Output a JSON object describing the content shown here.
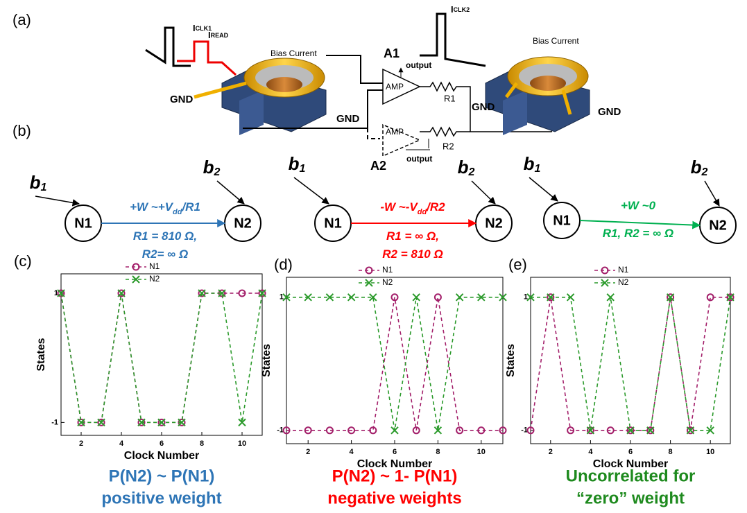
{
  "panel_labels": {
    "a": "(a)",
    "b": "(b)"
  },
  "device": {
    "i_clk1": [
      "I",
      "CLK1"
    ],
    "i_read": [
      "I",
      "READ"
    ],
    "bias_current_1": "Bias Current",
    "gnd_1": "GND",
    "gnd_2": "GND",
    "a1": "A1",
    "output_1": "output",
    "amp_1": "AMP",
    "r1": "R1",
    "amp_2": "AMP",
    "r2": "R2",
    "output_2": "output",
    "a2": "A2",
    "i_clk2": [
      "I",
      "CLK2"
    ],
    "bias_current_2": "Bias Current",
    "gnd_3": "GND",
    "gnd_4": "GND"
  },
  "networks": [
    {
      "source": [
        "b",
        "1"
      ],
      "target": [
        "b",
        "2"
      ],
      "from": "N1",
      "to": "N2",
      "color": "#2e75b6",
      "edge_label": [
        [
          "+W ~+V",
          "dd",
          "/R1"
        ],
        [
          "R1 = 810 Ω,"
        ],
        [
          "R2= ∞ Ω"
        ]
      ]
    },
    {
      "source": [
        "b",
        "1"
      ],
      "target": [
        "b",
        "2"
      ],
      "from": "N1",
      "to": "N2",
      "color": "#ff0000",
      "edge_label": [
        [
          "-W ~-V",
          "dd",
          "/R2"
        ],
        [
          "R1 = ∞ Ω,"
        ],
        [
          "R2 = 810 Ω"
        ]
      ]
    },
    {
      "source": [
        "b",
        "1"
      ],
      "target": [
        "b",
        "2"
      ],
      "from": "N1",
      "to": "N2",
      "color": "#00b050",
      "edge_label": [
        [
          "+W ~0"
        ],
        [
          "R1, R2 = ∞ Ω"
        ]
      ]
    }
  ],
  "chart_data": [
    {
      "type": "line",
      "title": "(c)",
      "x_label": "Clock Number",
      "y_label": "States",
      "x": [
        1,
        2,
        3,
        4,
        5,
        6,
        7,
        8,
        9,
        10,
        11
      ],
      "xlim": [
        1,
        11
      ],
      "ylim": [
        -1.2,
        1.3
      ],
      "xticks": [
        2,
        4,
        6,
        8,
        10
      ],
      "yticks": [
        -1,
        1
      ],
      "series": [
        {
          "name": "N1",
          "color": "#a31f6a",
          "marker": "circle",
          "values": [
            1,
            -1,
            -1,
            1,
            -1,
            -1,
            -1,
            1,
            1,
            1,
            1
          ]
        },
        {
          "name": "N2",
          "color": "#2b9a2b",
          "marker": "x",
          "values": [
            1,
            -1,
            -1,
            1,
            -1,
            -1,
            -1,
            1,
            1,
            -1,
            1
          ]
        }
      ],
      "caption": [
        "P(N2) ~ P(N1)",
        "positive weight"
      ],
      "caption_color": "#2e75b6"
    },
    {
      "type": "line",
      "title": "(d)",
      "x_label": "Clock Number",
      "y_label": "States",
      "x": [
        1,
        2,
        3,
        4,
        5,
        6,
        7,
        8,
        9,
        10,
        11
      ],
      "xlim": [
        1,
        11
      ],
      "ylim": [
        -1.2,
        1.3
      ],
      "xticks": [
        2,
        4,
        6,
        8,
        10
      ],
      "yticks": [
        -1,
        1
      ],
      "series": [
        {
          "name": "N1",
          "color": "#a31f6a",
          "marker": "circle",
          "values": [
            -1,
            -1,
            -1,
            -1,
            -1,
            1,
            -1,
            1,
            -1,
            -1,
            -1
          ]
        },
        {
          "name": "N2",
          "color": "#2b9a2b",
          "marker": "x",
          "values": [
            1,
            1,
            1,
            1,
            1,
            -1,
            1,
            -1,
            1,
            1,
            1
          ]
        }
      ],
      "caption": [
        "P(N2) ~ 1- P(N1)",
        "negative weights"
      ],
      "caption_color": "#ff0000"
    },
    {
      "type": "line",
      "title": "(e)",
      "x_label": "Clock Number",
      "y_label": "States",
      "x": [
        1,
        2,
        3,
        4,
        5,
        6,
        7,
        8,
        9,
        10,
        11
      ],
      "xlim": [
        1,
        11
      ],
      "ylim": [
        -1.2,
        1.3
      ],
      "xticks": [
        2,
        4,
        6,
        8,
        10
      ],
      "yticks": [
        -1,
        1
      ],
      "series": [
        {
          "name": "N1",
          "color": "#a31f6a",
          "marker": "circle",
          "values": [
            -1,
            1,
            -1,
            -1,
            -1,
            -1,
            -1,
            1,
            -1,
            1,
            1
          ]
        },
        {
          "name": "N2",
          "color": "#2b9a2b",
          "marker": "x",
          "values": [
            1,
            1,
            1,
            -1,
            1,
            -1,
            -1,
            1,
            -1,
            -1,
            1
          ]
        }
      ],
      "caption": [
        "Uncorrelated for",
        "“zero” weight"
      ],
      "caption_color": "#1e8a1e"
    }
  ]
}
